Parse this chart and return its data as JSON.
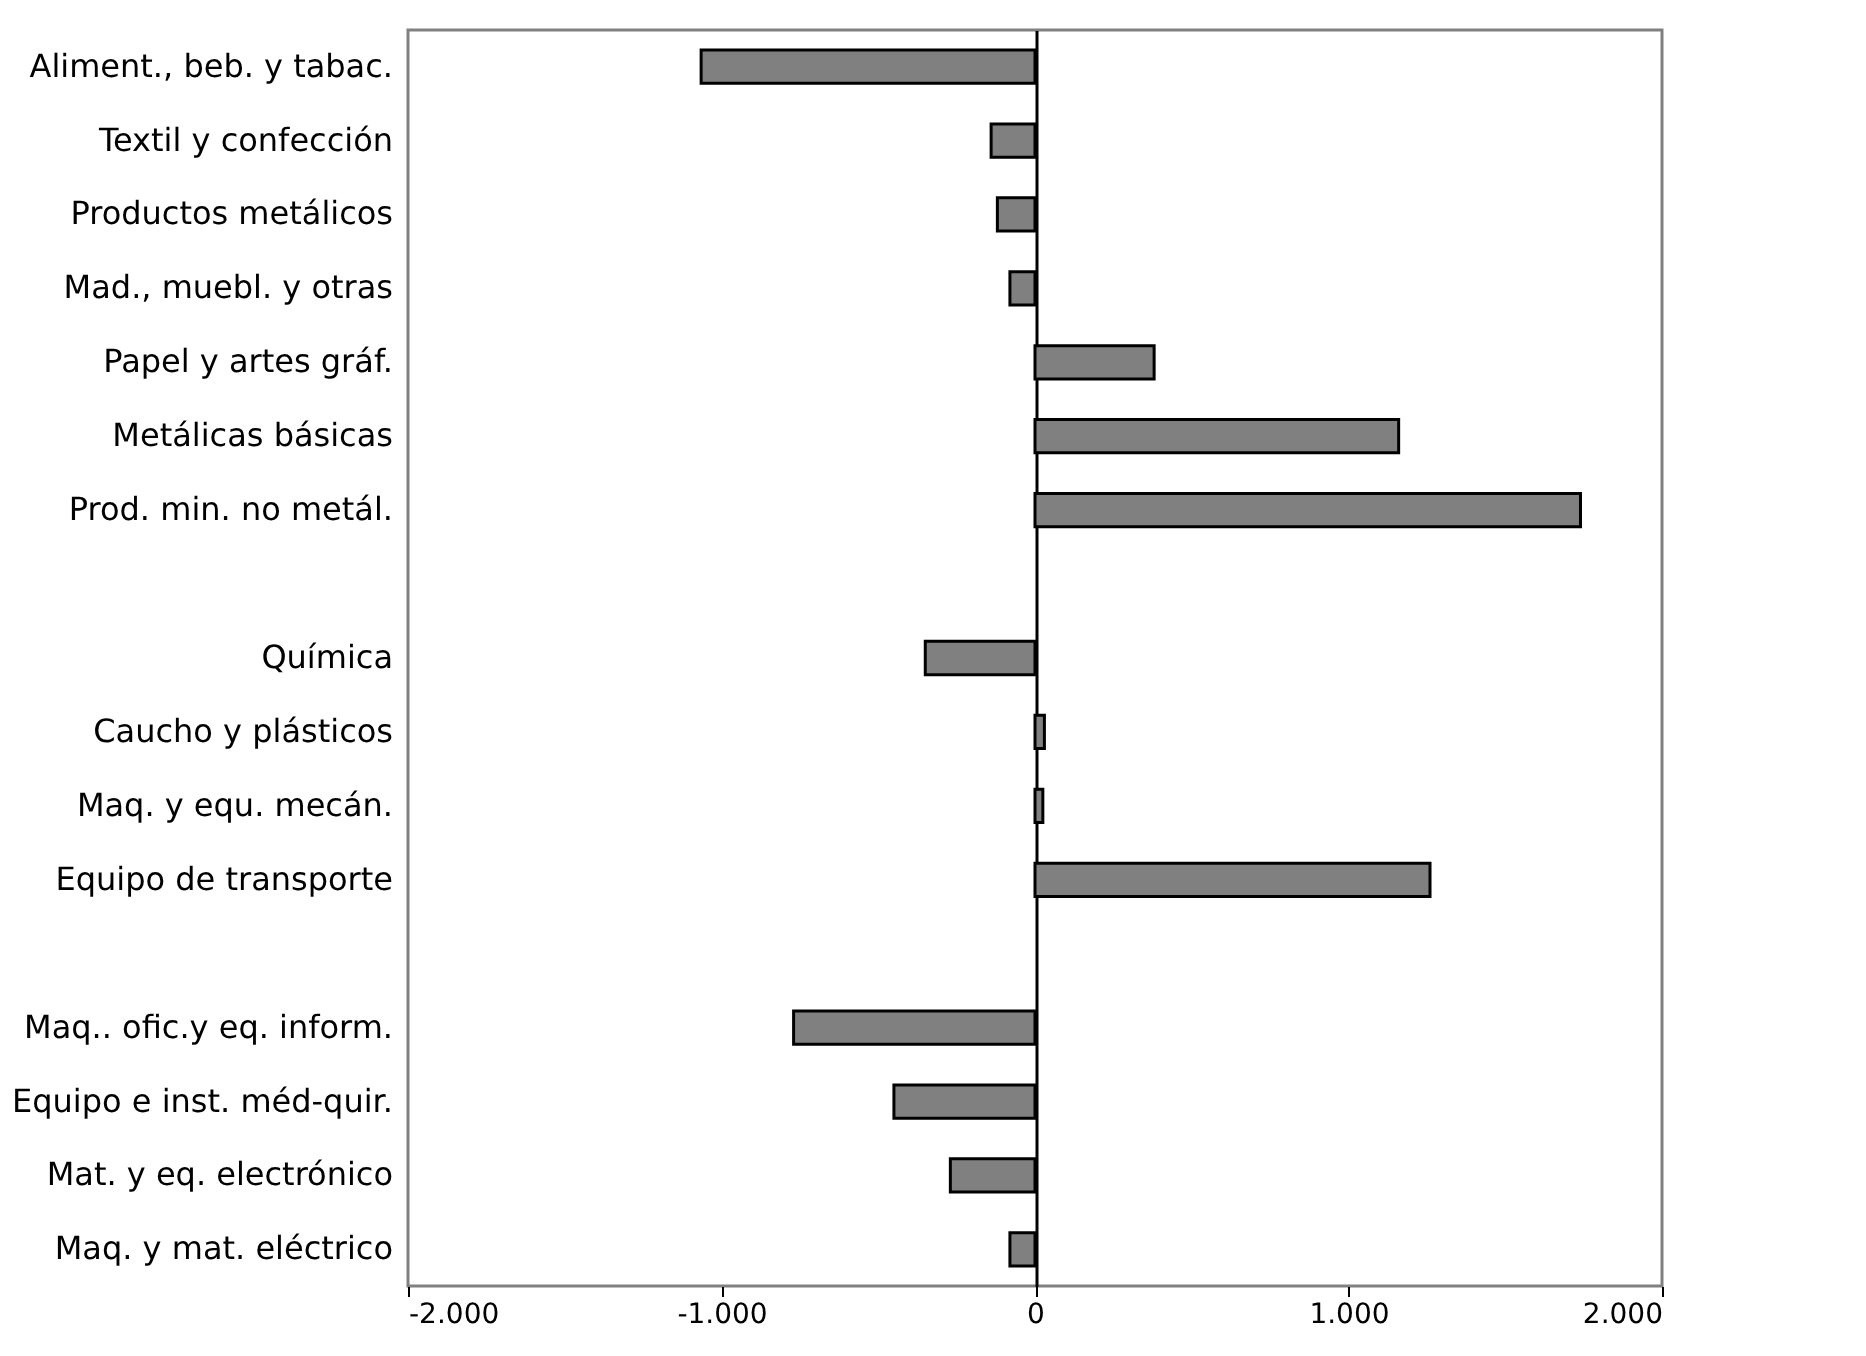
{
  "chart_data": {
    "type": "bar",
    "orientation": "horizontal",
    "categories": [
      "Aliment., beb. y tabac.",
      "Textil y confección",
      "Productos metálicos",
      "Mad., muebl. y otras",
      "Papel y artes gráf.",
      "Metálicas básicas",
      "Prod. min. no metál.",
      null,
      "Química",
      "Caucho y plásticos",
      "Maq. y equ. mecán.",
      "Equipo de transporte",
      null,
      "Maq.. ofic.y eq. inform.",
      "Equipo e inst. méd-quir.",
      "Mat. y eq. electrónico",
      "Maq. y mat. eléctrico"
    ],
    "values": [
      -1065,
      -140,
      -120,
      -80,
      380,
      1160,
      1740,
      null,
      -350,
      30,
      25,
      1260,
      null,
      -770,
      -450,
      -270,
      -80
    ],
    "color": "#808080",
    "xlim": [
      -2000,
      2000
    ],
    "xticks": [
      {
        "value": -2000,
        "label": "-2.000"
      },
      {
        "value": -1000,
        "label": "-1.000"
      },
      0,
      {
        "value": 1000,
        "label": "1.000"
      },
      {
        "value": 2000,
        "label": "2.000"
      }
    ]
  }
}
